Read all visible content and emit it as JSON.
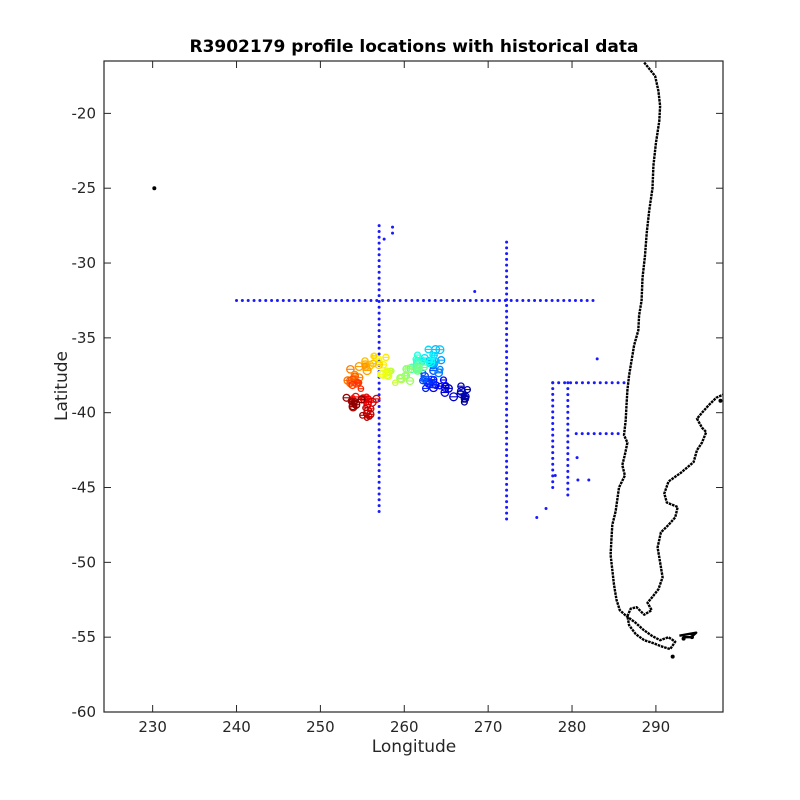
{
  "chart_data": {
    "type": "scatter",
    "title": "R3902179 profile locations with historical data",
    "xlabel": "Longitude",
    "ylabel": "Latitude",
    "xlim": [
      224.2,
      298
    ],
    "ylim": [
      -60,
      -16.5
    ],
    "xticks": [
      230,
      240,
      250,
      260,
      270,
      280,
      290
    ],
    "yticks": [
      -20,
      -25,
      -30,
      -35,
      -40,
      -45,
      -50,
      -55,
      -60
    ],
    "grid": false,
    "colors": {
      "historical": "#1a1aff",
      "coastline": "#000000",
      "axes": "#262626",
      "profile_colormap": [
        "#00008f",
        "#0000ff",
        "#0080ff",
        "#00ffff",
        "#80ff80",
        "#ffff00",
        "#ff8000",
        "#ff0000",
        "#800000"
      ]
    },
    "isolated_point": {
      "x": 230.2,
      "y": -25.0
    },
    "historical_lines": [
      {
        "orientation": "horizontal",
        "y": -32.5,
        "x_from": 240.0,
        "x_to": 282.5
      },
      {
        "orientation": "vertical",
        "x": 257.0,
        "y_from": -46.6,
        "y_to": -27.5
      },
      {
        "orientation": "vertical",
        "x": 272.2,
        "y_from": -47.1,
        "y_to": -28.6
      },
      {
        "orientation": "vertical",
        "x": 277.7,
        "y_from": -45.0,
        "y_to": -38.0
      },
      {
        "orientation": "vertical",
        "x": 279.5,
        "y_from": -45.5,
        "y_to": -38.0
      },
      {
        "orientation": "horizontal",
        "y": -38.0,
        "x_from": 277.7,
        "x_to": 286.2
      },
      {
        "orientation": "horizontal",
        "y": -41.4,
        "x_from": 280.5,
        "x_to": 285.5
      }
    ],
    "historical_points": [
      {
        "x": 258.6,
        "y": -27.6
      },
      {
        "x": 258.6,
        "y": -28.0
      },
      {
        "x": 257.6,
        "y": -28.4
      },
      {
        "x": 268.4,
        "y": -31.9
      },
      {
        "x": 283.0,
        "y": -36.4
      },
      {
        "x": 276.9,
        "y": -46.4
      },
      {
        "x": 275.8,
        "y": -47.0
      },
      {
        "x": 278.0,
        "y": -44.2
      },
      {
        "x": 280.6,
        "y": -43.0
      },
      {
        "x": 280.7,
        "y": -44.5
      },
      {
        "x": 282.0,
        "y": -44.5
      }
    ],
    "profile_track": [
      {
        "x": 268.0,
        "y": -38.9,
        "c": 0.0
      },
      {
        "x": 266.5,
        "y": -38.6,
        "c": 0.04
      },
      {
        "x": 265.0,
        "y": -38.5,
        "c": 0.08
      },
      {
        "x": 263.5,
        "y": -38.1,
        "c": 0.13
      },
      {
        "x": 262.5,
        "y": -37.9,
        "c": 0.18
      },
      {
        "x": 263.2,
        "y": -37.2,
        "c": 0.23
      },
      {
        "x": 264.0,
        "y": -36.5,
        "c": 0.28
      },
      {
        "x": 263.5,
        "y": -36.0,
        "c": 0.33
      },
      {
        "x": 262.5,
        "y": -36.3,
        "c": 0.38
      },
      {
        "x": 261.0,
        "y": -36.5,
        "c": 0.43
      },
      {
        "x": 261.8,
        "y": -37.1,
        "c": 0.48
      },
      {
        "x": 260.0,
        "y": -37.5,
        "c": 0.53
      },
      {
        "x": 258.5,
        "y": -37.6,
        "c": 0.58
      },
      {
        "x": 257.5,
        "y": -36.8,
        "c": 0.63
      },
      {
        "x": 256.0,
        "y": -36.5,
        "c": 0.68
      },
      {
        "x": 254.5,
        "y": -37.0,
        "c": 0.73
      },
      {
        "x": 253.5,
        "y": -37.8,
        "c": 0.78
      },
      {
        "x": 254.0,
        "y": -38.6,
        "c": 0.83
      },
      {
        "x": 255.0,
        "y": -39.2,
        "c": 0.88
      },
      {
        "x": 256.0,
        "y": -39.5,
        "c": 0.91
      },
      {
        "x": 255.0,
        "y": -40.0,
        "c": 0.94
      },
      {
        "x": 253.8,
        "y": -39.5,
        "c": 0.97
      },
      {
        "x": 254.2,
        "y": -38.8,
        "c": 1.0
      }
    ],
    "coastline": [
      [
        288.6,
        -16.6
      ],
      [
        289.9,
        -17.5
      ],
      [
        290.3,
        -18.5
      ],
      [
        290.5,
        -19.5
      ],
      [
        290.4,
        -20.5
      ],
      [
        290.0,
        -22.0
      ],
      [
        289.7,
        -23.5
      ],
      [
        289.6,
        -25.0
      ],
      [
        289.2,
        -26.5
      ],
      [
        288.9,
        -28.0
      ],
      [
        288.7,
        -29.5
      ],
      [
        288.4,
        -31.0
      ],
      [
        288.3,
        -32.5
      ],
      [
        288.0,
        -33.5
      ],
      [
        287.9,
        -34.5
      ],
      [
        287.4,
        -35.5
      ],
      [
        287.1,
        -36.5
      ],
      [
        286.8,
        -37.5
      ],
      [
        286.6,
        -38.5
      ],
      [
        286.5,
        -39.5
      ],
      [
        286.4,
        -40.5
      ],
      [
        286.2,
        -41.5
      ],
      [
        286.6,
        -42.0
      ],
      [
        286.3,
        -42.8
      ],
      [
        286.0,
        -43.5
      ],
      [
        286.3,
        -44.2
      ],
      [
        285.6,
        -45.0
      ],
      [
        285.4,
        -45.8
      ],
      [
        285.2,
        -46.6
      ],
      [
        284.8,
        -47.5
      ],
      [
        284.7,
        -48.5
      ],
      [
        284.6,
        -49.5
      ],
      [
        284.8,
        -50.5
      ],
      [
        285.0,
        -51.5
      ],
      [
        285.3,
        -52.5
      ],
      [
        285.7,
        -53.2
      ],
      [
        286.5,
        -53.6
      ],
      [
        287.5,
        -54.0
      ],
      [
        288.5,
        -54.5
      ],
      [
        289.5,
        -54.9
      ],
      [
        290.5,
        -55.2
      ],
      [
        291.5,
        -55.0
      ],
      [
        292.3,
        -55.3
      ],
      [
        291.7,
        -55.8
      ],
      [
        290.6,
        -55.6
      ],
      [
        289.7,
        -55.4
      ],
      [
        288.6,
        -55.2
      ],
      [
        287.6,
        -54.8
      ],
      [
        286.8,
        -54.2
      ],
      [
        286.6,
        -53.6
      ],
      [
        287.0,
        -53.1
      ],
      [
        287.7,
        -53.0
      ],
      [
        288.6,
        -53.5
      ],
      [
        289.5,
        -53.2
      ],
      [
        289.0,
        -52.7
      ],
      [
        289.6,
        -52.3
      ],
      [
        290.3,
        -51.8
      ],
      [
        290.8,
        -51.0
      ],
      [
        290.5,
        -50.0
      ],
      [
        290.2,
        -49.0
      ],
      [
        290.6,
        -48.0
      ],
      [
        291.5,
        -47.5
      ],
      [
        292.3,
        -47.0
      ],
      [
        292.6,
        -46.3
      ],
      [
        291.3,
        -46.0
      ],
      [
        291.0,
        -45.4
      ],
      [
        291.5,
        -44.6
      ],
      [
        293.0,
        -44.0
      ],
      [
        294.5,
        -43.3
      ],
      [
        294.9,
        -42.5
      ],
      [
        295.5,
        -42.0
      ],
      [
        296.0,
        -41.3
      ],
      [
        295.5,
        -41.0
      ],
      [
        294.9,
        -40.4
      ],
      [
        295.5,
        -40.0
      ],
      [
        296.3,
        -39.5
      ],
      [
        297.2,
        -39.0
      ],
      [
        298.0,
        -38.8
      ]
    ],
    "coastline_secondary": [
      [
        292.8,
        -54.9
      ],
      [
        293.8,
        -54.8
      ],
      [
        294.8,
        -54.7
      ],
      [
        294.2,
        -55.0
      ],
      [
        293.2,
        -55.0
      ]
    ],
    "islands": [
      {
        "x": 292.0,
        "y": -56.3
      },
      {
        "x": 293.3,
        "y": -55.1
      },
      {
        "x": 294.3,
        "y": -55.0
      },
      {
        "x": 297.7,
        "y": -39.2
      }
    ]
  }
}
